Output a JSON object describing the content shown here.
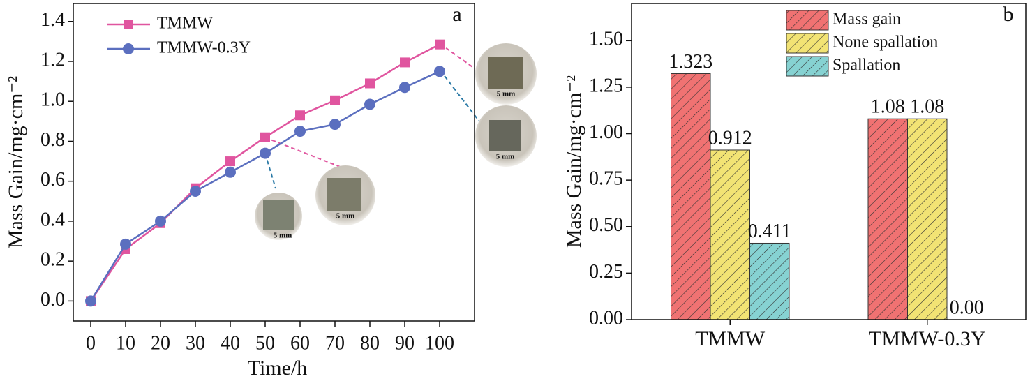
{
  "chart_data": [
    {
      "type": "line",
      "panel_label": "a",
      "xlabel": "Time/h",
      "ylabel": "Mass Gain/mg·cm⁻²",
      "x": [
        0,
        10,
        20,
        30,
        40,
        50,
        60,
        70,
        80,
        90,
        100
      ],
      "series": [
        {
          "name": "TMMW",
          "color": "#e0559f",
          "marker": "square",
          "values": [
            0,
            0.26,
            0.39,
            0.565,
            0.7,
            0.82,
            0.93,
            1.005,
            1.09,
            1.195,
            1.285
          ]
        },
        {
          "name": "TMMW-0.3Y",
          "color": "#5b6fbf",
          "marker": "circle",
          "values": [
            0,
            0.285,
            0.4,
            0.55,
            0.645,
            0.74,
            0.85,
            0.885,
            0.985,
            1.07,
            1.15
          ]
        }
      ],
      "xlim": [
        -5,
        110
      ],
      "xticks": [
        0,
        10,
        20,
        30,
        40,
        50,
        60,
        70,
        80,
        90,
        100
      ],
      "ylim": [
        -0.1,
        1.49
      ],
      "yticks": [
        {
          "value": 0,
          "label": "0.0"
        },
        0.2,
        0.4,
        0.6,
        0.8,
        {
          "value": 1,
          "label": "1.0"
        },
        1.2,
        1.4
      ],
      "legend": "upper left",
      "insets": [
        {
          "label": "5 mm"
        },
        {
          "label": "5 mm"
        },
        {
          "label": "5 mm"
        },
        {
          "label": "5 mm"
        }
      ]
    },
    {
      "type": "bar",
      "panel_label": "b",
      "ylabel": "Mass Gain/mg·cm⁻²",
      "categories": [
        "TMMW",
        "TMMW-0.3Y"
      ],
      "series": [
        {
          "name": "Mass gain",
          "color": "#f07272",
          "values": [
            1.323,
            1.08
          ],
          "value_labels": [
            "1.323",
            "1.08"
          ]
        },
        {
          "name": "None spallation",
          "color": "#f2e374",
          "values": [
            0.912,
            1.08
          ],
          "value_labels": [
            "0.912",
            "1.08"
          ]
        },
        {
          "name": "Spallation",
          "color": "#86d2d2",
          "values": [
            0.411,
            0
          ],
          "value_labels": [
            "0.411",
            "0.00"
          ]
        }
      ],
      "ylim": [
        0,
        1.7
      ],
      "yticks": [
        {
          "value": 0,
          "label": "0.00"
        },
        0.25,
        {
          "value": 0.5,
          "label": "0.50"
        },
        0.75,
        {
          "value": 1,
          "label": "1.00"
        },
        1.25,
        {
          "value": 1.5,
          "label": "1.50"
        }
      ],
      "legend": "upper center",
      "hatch": true
    }
  ]
}
